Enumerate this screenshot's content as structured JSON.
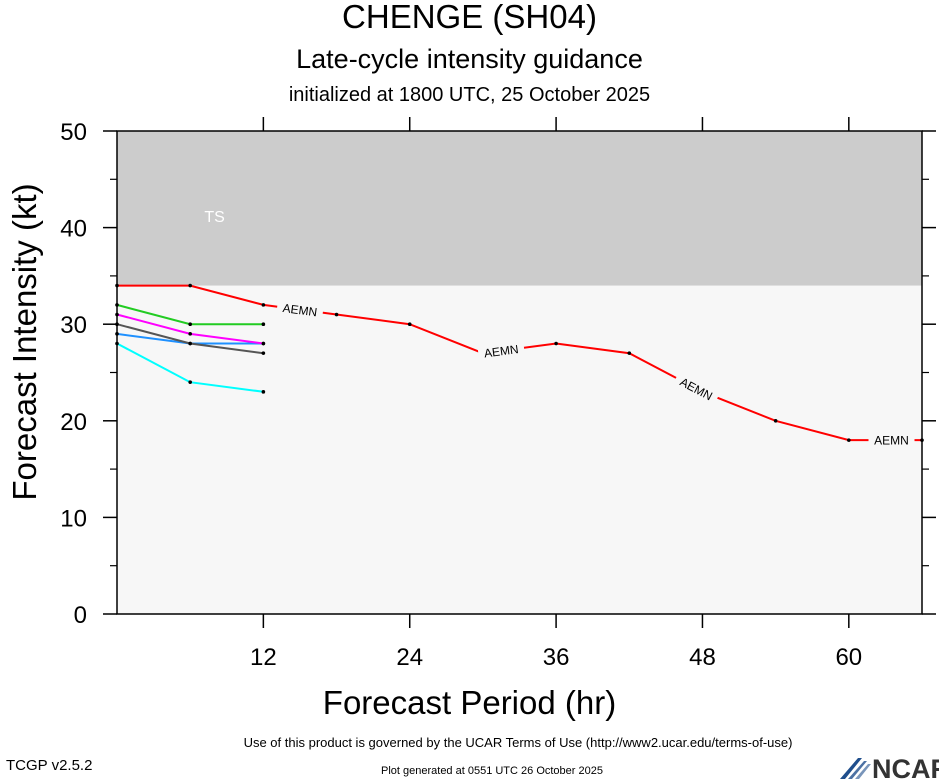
{
  "header": {
    "title": "CHENGE (SH04)",
    "subtitle": "Late-cycle intensity guidance",
    "initialized": "initialized at 1800 UTC, 25 October 2025"
  },
  "footer": {
    "terms": "Use of this product is governed by the UCAR Terms of Use (http://www2.ucar.edu/terms-of-use)",
    "version": "TCGP v2.5.2",
    "generated": "Plot generated at 0551 UTC   26 October 2025",
    "logo_text": "NCAR"
  },
  "colors": {
    "ts_band": "#cccccc",
    "plot_background": "#f7f7f7",
    "ts_label": "#ffffff"
  },
  "chart_data": {
    "type": "line",
    "xlabel": "Forecast Period (hr)",
    "ylabel": "Forecast Intensity (kt)",
    "xlim": [
      0,
      66
    ],
    "ylim": [
      0,
      50
    ],
    "xticks": [
      12,
      24,
      36,
      48,
      60
    ],
    "yticks": [
      0,
      10,
      20,
      30,
      40,
      50
    ],
    "bands": [
      {
        "label": "TS",
        "y_from": 34,
        "y_to": 50,
        "color": "#cccccc"
      }
    ],
    "series": [
      {
        "name": "AEMN",
        "color": "#ff0000",
        "x": [
          0,
          6,
          12,
          18,
          24,
          30,
          36,
          42,
          48,
          54,
          60,
          66
        ],
        "values": [
          34,
          34,
          32,
          31,
          30,
          27,
          28,
          27,
          23,
          20,
          18,
          18
        ],
        "labeled": true
      },
      {
        "color": "#22cc22",
        "x": [
          0,
          6,
          12
        ],
        "values": [
          32,
          30,
          30
        ]
      },
      {
        "color": "#ff00ff",
        "x": [
          0,
          6,
          12
        ],
        "values": [
          31,
          29,
          28
        ]
      },
      {
        "color": "#555555",
        "x": [
          0,
          6,
          12
        ],
        "values": [
          30,
          28,
          27
        ]
      },
      {
        "color": "#1e90ff",
        "x": [
          0,
          6,
          12
        ],
        "values": [
          29,
          28,
          28
        ]
      },
      {
        "color": "#00ffff",
        "x": [
          0,
          6,
          12
        ],
        "values": [
          28,
          24,
          23
        ]
      }
    ],
    "annotations": [
      {
        "text": "AEMN",
        "x": 15,
        "series": "AEMN"
      },
      {
        "text": "AEMN",
        "x": 31.5,
        "series": "AEMN"
      },
      {
        "text": "AEMN",
        "x": 47.5,
        "series": "AEMN"
      },
      {
        "text": "AEMN",
        "x": 63.5,
        "series": "AEMN"
      }
    ]
  }
}
